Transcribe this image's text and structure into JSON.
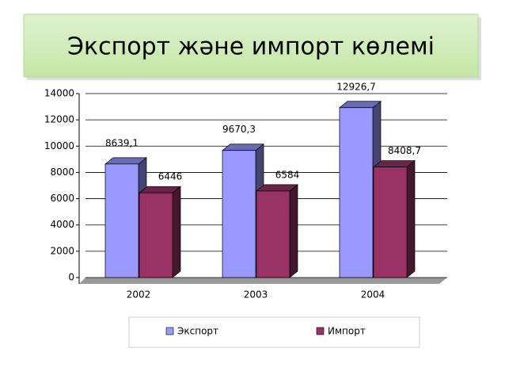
{
  "chart_data": {
    "type": "bar3d",
    "title": "Экспорт және импорт көлемі",
    "categories": [
      "2002",
      "2003",
      "2004"
    ],
    "series": [
      {
        "name": "Экспорт",
        "color": "#9999ff",
        "values": [
          8639.1,
          9670.3,
          12926.7
        ],
        "value_labels": [
          "8639,1",
          "9670,3",
          "12926,7"
        ]
      },
      {
        "name": "Импорт",
        "color": "#993366",
        "values": [
          6446,
          6584,
          8408.7
        ],
        "value_labels": [
          "6446",
          "6584",
          "8408,7"
        ]
      }
    ],
    "ylim": [
      0,
      14000
    ],
    "yticks": [
      0,
      2000,
      4000,
      6000,
      8000,
      10000,
      12000,
      14000
    ],
    "grid": true,
    "legend": "bottom"
  }
}
